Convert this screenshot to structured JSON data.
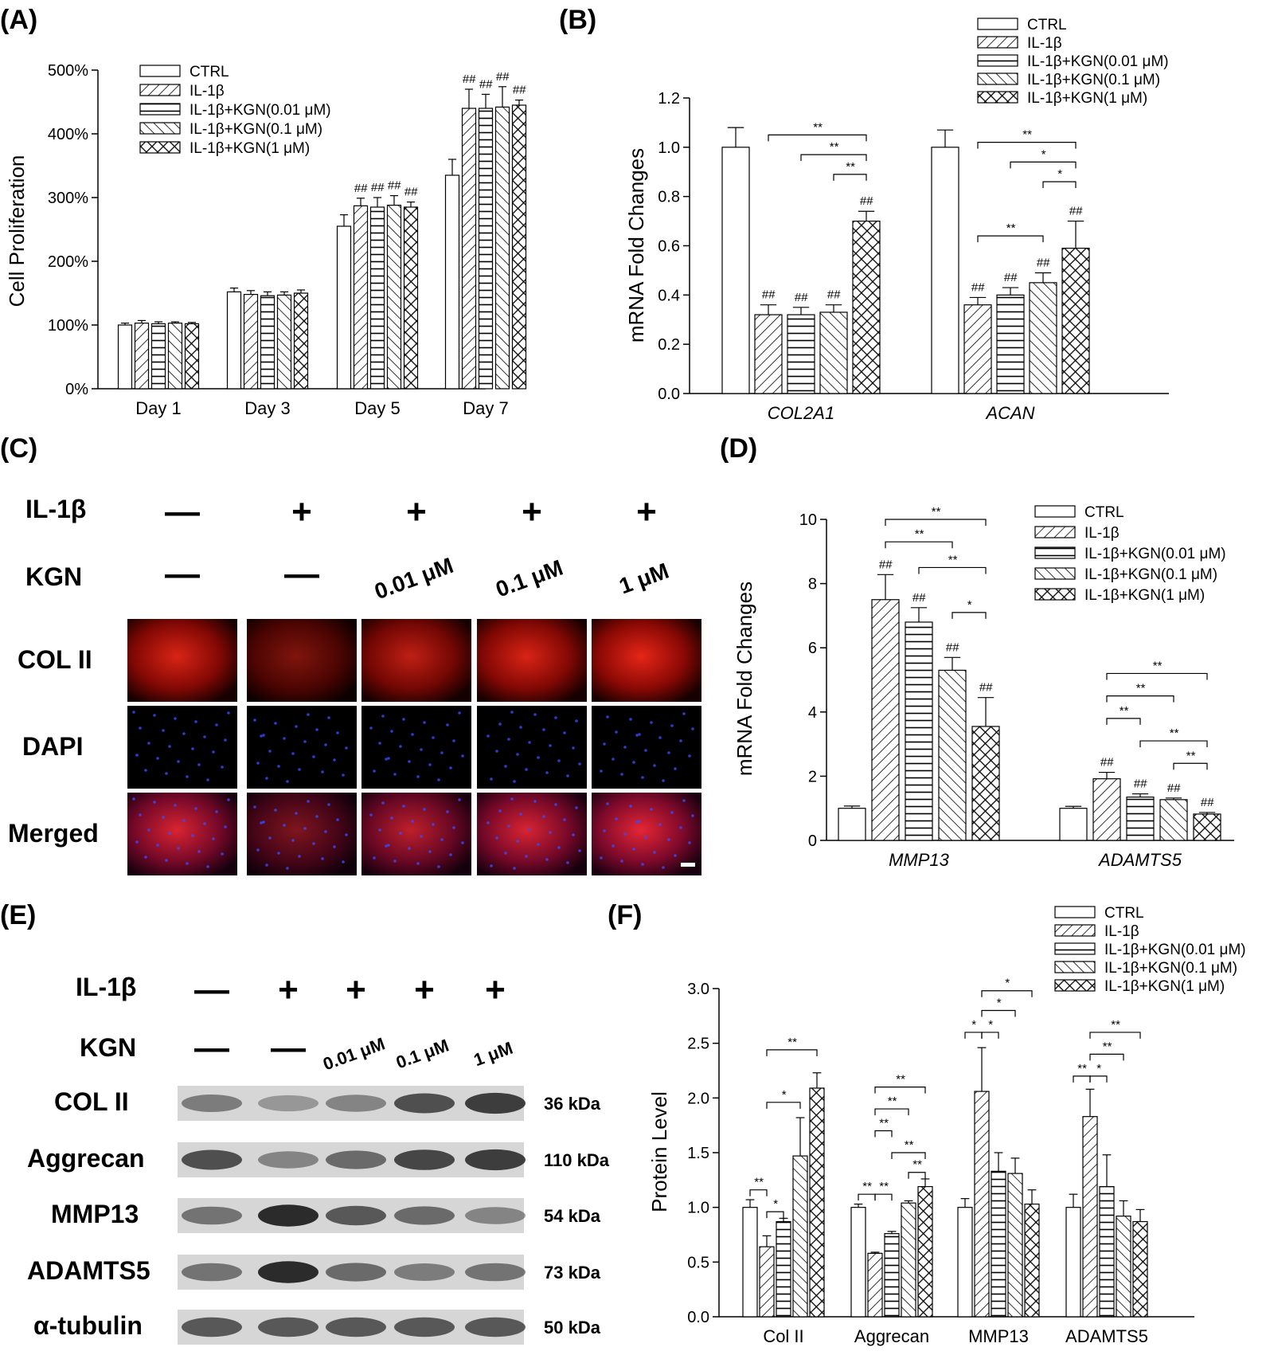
{
  "panel_labels": [
    "(A)",
    "(B)",
    "(C)",
    "(D)",
    "(E)",
    "(F)"
  ],
  "colors": {
    "bar_fill": "#ffffff",
    "bar_stroke": "#000000",
    "col2": "#d01010",
    "dapi": "#1a2a9a",
    "blot_bg": "#d9d9d9",
    "band": "#2a2a2a"
  },
  "chart_data": [
    {
      "panel": "(A)",
      "type": "bar",
      "categories": [
        "Day 1",
        "Day 3",
        "Day 5",
        "Day 7"
      ],
      "series": [
        {
          "name": "CTRL",
          "values": [
            100,
            152,
            255,
            335
          ],
          "errors": [
            3,
            6,
            18,
            25
          ]
        },
        {
          "name": "IL-1β",
          "values": [
            103,
            148,
            287,
            440
          ],
          "errors": [
            4,
            6,
            12,
            30
          ]
        },
        {
          "name": "IL-1β+KGN(0.01 μM)",
          "values": [
            102,
            146,
            285,
            440
          ],
          "errors": [
            3,
            6,
            15,
            22
          ]
        },
        {
          "name": "IL-1β+KGN(0.1 μM)",
          "values": [
            103,
            147,
            288,
            442
          ],
          "errors": [
            2,
            5,
            15,
            32
          ]
        },
        {
          "name": "IL-1β+KGN(1 μM)",
          "values": [
            102,
            150,
            285,
            445
          ],
          "errors": [
            2,
            5,
            8,
            8
          ]
        }
      ],
      "ylabel": "Cell Proliferation",
      "ylim": [
        0,
        500
      ],
      "yticks": [
        0,
        100,
        200,
        300,
        400,
        500
      ],
      "ytick_labels": [
        "0%",
        "100%",
        "200%",
        "300%",
        "400%",
        "500%"
      ],
      "hash": "##",
      "hash_marks": [
        {
          "cat": 2,
          "series": [
            1,
            2,
            3,
            4
          ]
        },
        {
          "cat": 3,
          "series": [
            1,
            2,
            3,
            4
          ]
        }
      ]
    },
    {
      "panel": "(B)",
      "type": "bar",
      "categories": [
        "COL2A1",
        "ACAN"
      ],
      "series": [
        {
          "name": "CTRL",
          "values": [
            1.0,
            1.0
          ],
          "errors": [
            0.08,
            0.07
          ]
        },
        {
          "name": "IL-1β",
          "values": [
            0.32,
            0.36
          ],
          "errors": [
            0.04,
            0.03
          ]
        },
        {
          "name": "IL-1β+KGN(0.01 μM)",
          "values": [
            0.32,
            0.4
          ],
          "errors": [
            0.03,
            0.03
          ]
        },
        {
          "name": "IL-1β+KGN(0.1 μM)",
          "values": [
            0.33,
            0.45
          ],
          "errors": [
            0.03,
            0.04
          ]
        },
        {
          "name": "IL-1β+KGN(1 μM)",
          "values": [
            0.7,
            0.59
          ],
          "errors": [
            0.04,
            0.11
          ]
        }
      ],
      "ylabel": "mRNA Fold Changes",
      "ylim": [
        0,
        1.2
      ],
      "yticks": [
        0.0,
        0.2,
        0.4,
        0.6,
        0.8,
        1.0,
        1.2
      ],
      "ytick_labels": [
        "0.0",
        "0.2",
        "0.4",
        "0.6",
        "0.8",
        "1.0",
        "1.2"
      ],
      "hash": "##",
      "hash_marks": [
        {
          "cat": 0,
          "series": [
            1,
            2,
            3,
            4
          ]
        },
        {
          "cat": 1,
          "series": [
            1,
            2,
            3,
            4
          ]
        }
      ],
      "brackets": [
        {
          "cat": 0,
          "from": 1,
          "to": 4,
          "y": 1.05,
          "label": "**"
        },
        {
          "cat": 0,
          "from": 2,
          "to": 4,
          "y": 0.97,
          "label": "**"
        },
        {
          "cat": 0,
          "from": 3,
          "to": 4,
          "y": 0.89,
          "label": "**"
        },
        {
          "cat": 1,
          "from": 1,
          "to": 4,
          "y": 1.02,
          "label": "**"
        },
        {
          "cat": 1,
          "from": 2,
          "to": 4,
          "y": 0.94,
          "label": "*"
        },
        {
          "cat": 1,
          "from": 3,
          "to": 4,
          "y": 0.86,
          "label": "*"
        },
        {
          "cat": 1,
          "from": 1,
          "to": 3,
          "y": 0.64,
          "label": "**"
        }
      ]
    },
    {
      "panel": "(D)",
      "type": "bar",
      "categories": [
        "MMP13",
        "ADAMTS5"
      ],
      "series": [
        {
          "name": "CTRL",
          "values": [
            1.0,
            1.0
          ],
          "errors": [
            0.07,
            0.06
          ]
        },
        {
          "name": "IL-1β",
          "values": [
            7.5,
            1.92
          ],
          "errors": [
            0.78,
            0.2
          ]
        },
        {
          "name": "IL-1β+KGN(0.01 μM)",
          "values": [
            6.8,
            1.35
          ],
          "errors": [
            0.45,
            0.1
          ]
        },
        {
          "name": "IL-1β+KGN(0.1 μM)",
          "values": [
            5.3,
            1.27
          ],
          "errors": [
            0.4,
            0.05
          ]
        },
        {
          "name": "IL-1β+KGN(1 μM)",
          "values": [
            3.55,
            0.82
          ],
          "errors": [
            0.9,
            0.05
          ]
        }
      ],
      "ylabel": "mRNA Fold Changes",
      "ylim": [
        0,
        10
      ],
      "yticks": [
        0,
        2,
        4,
        6,
        8,
        10
      ],
      "ytick_labels": [
        "0",
        "2",
        "4",
        "6",
        "8",
        "10"
      ],
      "hash": "##",
      "hash_marks": [
        {
          "cat": 0,
          "series": [
            1,
            2,
            3,
            4
          ]
        },
        {
          "cat": 1,
          "series": [
            1,
            2,
            3,
            4
          ]
        }
      ],
      "brackets": [
        {
          "cat": 0,
          "from": 1,
          "to": 4,
          "y": 10.0,
          "label": "**"
        },
        {
          "cat": 0,
          "from": 1,
          "to": 3,
          "y": 9.3,
          "label": "**"
        },
        {
          "cat": 0,
          "from": 2,
          "to": 4,
          "y": 8.5,
          "label": "**"
        },
        {
          "cat": 0,
          "from": 3,
          "to": 4,
          "y": 7.1,
          "label": "*"
        },
        {
          "cat": 1,
          "from": 1,
          "to": 4,
          "y": 5.2,
          "label": "**"
        },
        {
          "cat": 1,
          "from": 1,
          "to": 3,
          "y": 4.5,
          "label": "**"
        },
        {
          "cat": 1,
          "from": 1,
          "to": 2,
          "y": 3.8,
          "label": "**"
        },
        {
          "cat": 1,
          "from": 2,
          "to": 4,
          "y": 3.1,
          "label": "**"
        },
        {
          "cat": 1,
          "from": 3,
          "to": 4,
          "y": 2.4,
          "label": "**"
        }
      ]
    },
    {
      "panel": "(F)",
      "type": "bar",
      "categories": [
        "Col II",
        "Aggrecan",
        "MMP13",
        "ADAMTS5"
      ],
      "series": [
        {
          "name": "CTRL",
          "values": [
            1.0,
            1.0,
            1.0,
            1.0
          ],
          "errors": [
            0.07,
            0.03,
            0.08,
            0.12
          ]
        },
        {
          "name": "IL-1β",
          "values": [
            0.64,
            0.58,
            2.06,
            1.83
          ],
          "errors": [
            0.1,
            0.01,
            0.4,
            0.25
          ]
        },
        {
          "name": "IL-1β+KGN(0.01 μM)",
          "values": [
            0.87,
            0.76,
            1.33,
            1.19
          ],
          "errors": [
            0.03,
            0.02,
            0.17,
            0.29
          ]
        },
        {
          "name": "IL-1β+KGN(0.1 μM)",
          "values": [
            1.47,
            1.04,
            1.31,
            0.92
          ],
          "errors": [
            0.35,
            0.02,
            0.14,
            0.14
          ]
        },
        {
          "name": "IL-1β+KGN(1 μM)",
          "values": [
            2.09,
            1.19,
            1.03,
            0.87
          ],
          "errors": [
            0.14,
            0.07,
            0.13,
            0.11
          ]
        }
      ],
      "ylabel": "Protein Level",
      "ylim": [
        0,
        3.0
      ],
      "yticks": [
        0.0,
        0.5,
        1.0,
        1.5,
        2.0,
        2.5,
        3.0
      ],
      "ytick_labels": [
        "0.0",
        "0.5",
        "1.0",
        "1.5",
        "2.0",
        "2.5",
        "3.0"
      ],
      "brackets": [
        {
          "cat": 0,
          "from": 0,
          "to": 1,
          "y": 1.16,
          "label": "**"
        },
        {
          "cat": 0,
          "from": 1,
          "to": 2,
          "y": 0.96,
          "label": "*"
        },
        {
          "cat": 0,
          "from": 1,
          "to": 4,
          "y": 2.44,
          "label": "**"
        },
        {
          "cat": 0,
          "from": 1,
          "to": 3,
          "y": 1.96,
          "label": "*"
        },
        {
          "cat": 1,
          "from": 0,
          "to": 1,
          "y": 1.12,
          "label": "**"
        },
        {
          "cat": 1,
          "from": 1,
          "to": 2,
          "y": 1.12,
          "label": "**"
        },
        {
          "cat": 1,
          "from": 1,
          "to": 4,
          "y": 2.1,
          "label": "**"
        },
        {
          "cat": 1,
          "from": 1,
          "to": 3,
          "y": 1.9,
          "label": "**"
        },
        {
          "cat": 1,
          "from": 1,
          "to": 2,
          "y": 1.7,
          "label": "**"
        },
        {
          "cat": 1,
          "from": 2,
          "to": 4,
          "y": 1.5,
          "label": "**"
        },
        {
          "cat": 1,
          "from": 3,
          "to": 4,
          "y": 1.32,
          "label": "**"
        },
        {
          "cat": 2,
          "from": 0,
          "to": 1,
          "y": 2.6,
          "label": "*"
        },
        {
          "cat": 2,
          "from": 1,
          "to": 2,
          "y": 2.6,
          "label": "*"
        },
        {
          "cat": 2,
          "from": 1,
          "to": 3,
          "y": 2.8,
          "label": "*"
        },
        {
          "cat": 2,
          "from": 1,
          "to": 4,
          "y": 2.98,
          "label": "*"
        },
        {
          "cat": 3,
          "from": 0,
          "to": 1,
          "y": 2.2,
          "label": "**"
        },
        {
          "cat": 3,
          "from": 1,
          "to": 2,
          "y": 2.2,
          "label": "*"
        },
        {
          "cat": 3,
          "from": 1,
          "to": 3,
          "y": 2.4,
          "label": "**"
        },
        {
          "cat": 3,
          "from": 1,
          "to": 4,
          "y": 2.6,
          "label": "**"
        }
      ]
    }
  ],
  "panel_c": {
    "il1b_label": "IL-1β",
    "kgn_label": "KGN",
    "il1b_signs": [
      "—",
      "+",
      "+",
      "+",
      "+"
    ],
    "kgn_doses": [
      "—",
      "—",
      "0.01 μM",
      "0.1 μM",
      "1 μM"
    ],
    "rows": [
      "COL II",
      "DAPI",
      "Merged"
    ],
    "red_intensity": [
      0.85,
      0.5,
      0.75,
      0.85,
      0.9
    ]
  },
  "panel_e": {
    "il1b_label": "IL-1β",
    "kgn_label": "KGN",
    "il1b_signs": [
      "—",
      "+",
      "+",
      "+",
      "+"
    ],
    "kgn_doses": [
      "—",
      "—",
      "0.01 μM",
      "0.1 μM",
      "1 μM"
    ],
    "blots": [
      {
        "name": "COL II",
        "kda": "36 kDa",
        "band": [
          0.5,
          0.35,
          0.45,
          0.75,
          0.85
        ]
      },
      {
        "name": "Aggrecan",
        "kda": "110 kDa",
        "band": [
          0.75,
          0.45,
          0.6,
          0.8,
          0.85
        ]
      },
      {
        "name": "MMP13",
        "kda": "54 kDa",
        "band": [
          0.55,
          0.95,
          0.7,
          0.6,
          0.45
        ]
      },
      {
        "name": "ADAMTS5",
        "kda": "73 kDa",
        "band": [
          0.55,
          0.95,
          0.6,
          0.5,
          0.55
        ]
      },
      {
        "name": "α-tubulin",
        "kda": "50 kDa",
        "band": [
          0.7,
          0.7,
          0.7,
          0.7,
          0.7
        ]
      }
    ]
  }
}
